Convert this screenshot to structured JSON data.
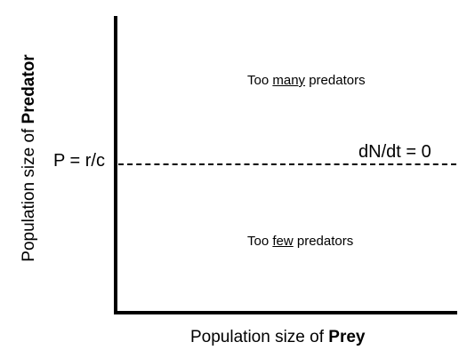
{
  "diagram": {
    "regions": {
      "above": {
        "prefix": "Too ",
        "emphasis": "many",
        "suffix": " predators"
      },
      "below": {
        "prefix": "Too ",
        "emphasis": "few",
        "suffix": " predators"
      }
    },
    "equilibrium": {
      "value_label": "P = r/c",
      "line_label": "dN/dt = 0"
    },
    "x_axis": {
      "prefix": "Population size of ",
      "emphasis": "Prey"
    },
    "y_axis": {
      "prefix": "Population size of ",
      "emphasis": "Predator"
    }
  }
}
